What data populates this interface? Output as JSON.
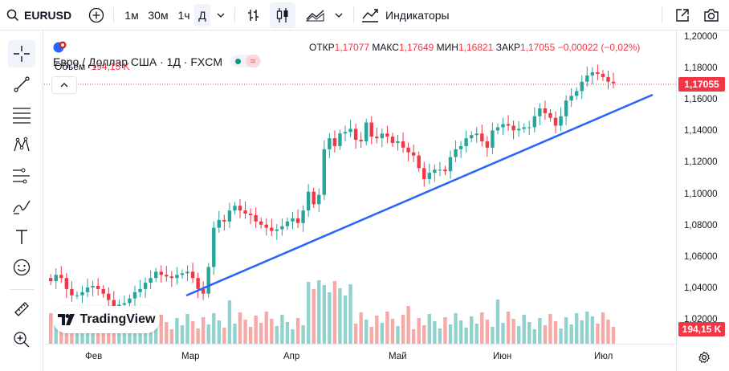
{
  "toolbar": {
    "symbol": "EURUSD",
    "timeframes": [
      "1м",
      "30м",
      "1ч",
      "Д"
    ],
    "active_timeframe": "Д",
    "indicators_label": "Индикаторы"
  },
  "legend": {
    "title": "Евро / Доллар США · 1Д · FXCM",
    "open_label": "ОТКР",
    "open_value": "1,17077",
    "high_label": "МАКС",
    "high_value": "1,17649",
    "low_label": "МИН",
    "low_value": "1,16821",
    "close_label": "ЗАКР",
    "close_value": "1,17055",
    "change": "−0,00022 (−0,02%)",
    "volume_label": "Объём",
    "volume_value": "194,15 K"
  },
  "price_axis": {
    "ticks": [
      "1,20000",
      "1,18000",
      "1,16000",
      "1,14000",
      "1,12000",
      "1,10000",
      "1,08000",
      "1,06000",
      "1,04000",
      "1,02000"
    ],
    "current_price": "1,17055",
    "current_volume": "194,15 K"
  },
  "time_axis": {
    "ticks": [
      "Фев",
      "Мар",
      "Апр",
      "Май",
      "Июн",
      "Июл"
    ]
  },
  "branding": {
    "logo_text": "TradingView"
  },
  "colors": {
    "up": "#26a69a",
    "down": "#f23645",
    "trendline": "#2962ff",
    "vol_up": "#92d2cc",
    "vol_down": "#f7a9a7"
  },
  "chart_data": {
    "type": "candlestick",
    "symbol": "EURUSD",
    "interval": "1D",
    "ylim": [
      1.01,
      1.2
    ],
    "last": {
      "open": 1.17077,
      "high": 1.17649,
      "low": 1.16821,
      "close": 1.17055,
      "volume": "194,15 K"
    },
    "approx_closes": [
      1.045,
      1.049,
      1.047,
      1.04,
      1.036,
      1.036,
      1.038,
      1.041,
      1.042,
      1.04,
      1.037,
      1.033,
      1.029,
      1.03,
      1.031,
      1.034,
      1.038,
      1.04,
      1.044,
      1.047,
      1.051,
      1.049,
      1.048,
      1.047,
      1.049,
      1.05,
      1.051,
      1.047,
      1.04,
      1.037,
      1.054,
      1.079,
      1.084,
      1.083,
      1.09,
      1.093,
      1.09,
      1.088,
      1.087,
      1.083,
      1.081,
      1.079,
      1.077,
      1.078,
      1.08,
      1.083,
      1.085,
      1.082,
      1.09,
      1.102,
      1.094,
      1.1,
      1.129,
      1.136,
      1.131,
      1.139,
      1.14,
      1.142,
      1.135,
      1.134,
      1.146,
      1.137,
      1.136,
      1.139,
      1.137,
      1.133,
      1.134,
      1.13,
      1.127,
      1.125,
      1.117,
      1.11,
      1.114,
      1.116,
      1.116,
      1.115,
      1.124,
      1.129,
      1.131,
      1.136,
      1.138,
      1.139,
      1.134,
      1.13,
      1.141,
      1.143,
      1.145,
      1.144,
      1.141,
      1.142,
      1.143,
      1.143,
      1.15,
      1.155,
      1.152,
      1.149,
      1.144,
      1.15,
      1.16,
      1.163,
      1.166,
      1.172,
      1.176,
      1.178,
      1.177,
      1.175,
      1.172,
      1.171
    ]
  }
}
